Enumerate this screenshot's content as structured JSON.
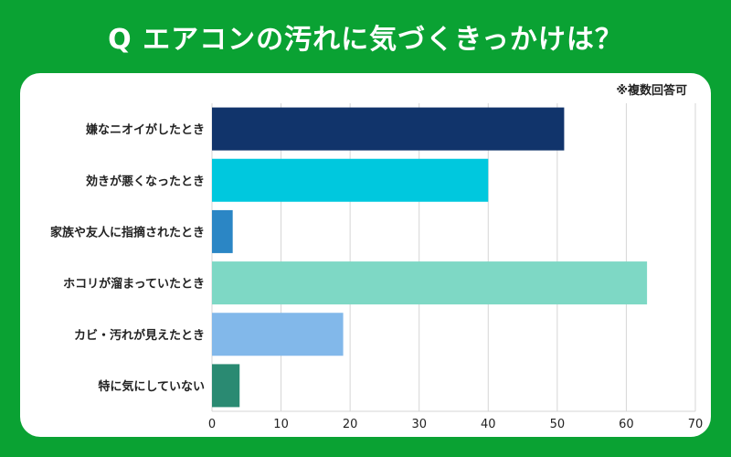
{
  "title": "Q エアコンの汚れに気づくきっかけは？",
  "note": "※複数回答可",
  "chart_data": {
    "type": "bar",
    "orientation": "horizontal",
    "categories": [
      "嫌なニオイがしたとき",
      "効きが悪くなったとき",
      "家族や友人に指摘されたとき",
      "ホコリが溜まっていたとき",
      "カビ・汚れが見えたとき",
      "特に気にしていない"
    ],
    "values": [
      51,
      40,
      3,
      63,
      19,
      4
    ],
    "colors": [
      "#11346b",
      "#00c8de",
      "#2b86c5",
      "#7ed8c5",
      "#82b8ea",
      "#2a8a72"
    ],
    "xlim": [
      0,
      70
    ],
    "xticks": [
      "0",
      "10",
      "20",
      "30",
      "40",
      "50",
      "60",
      "70"
    ],
    "grid": true
  }
}
